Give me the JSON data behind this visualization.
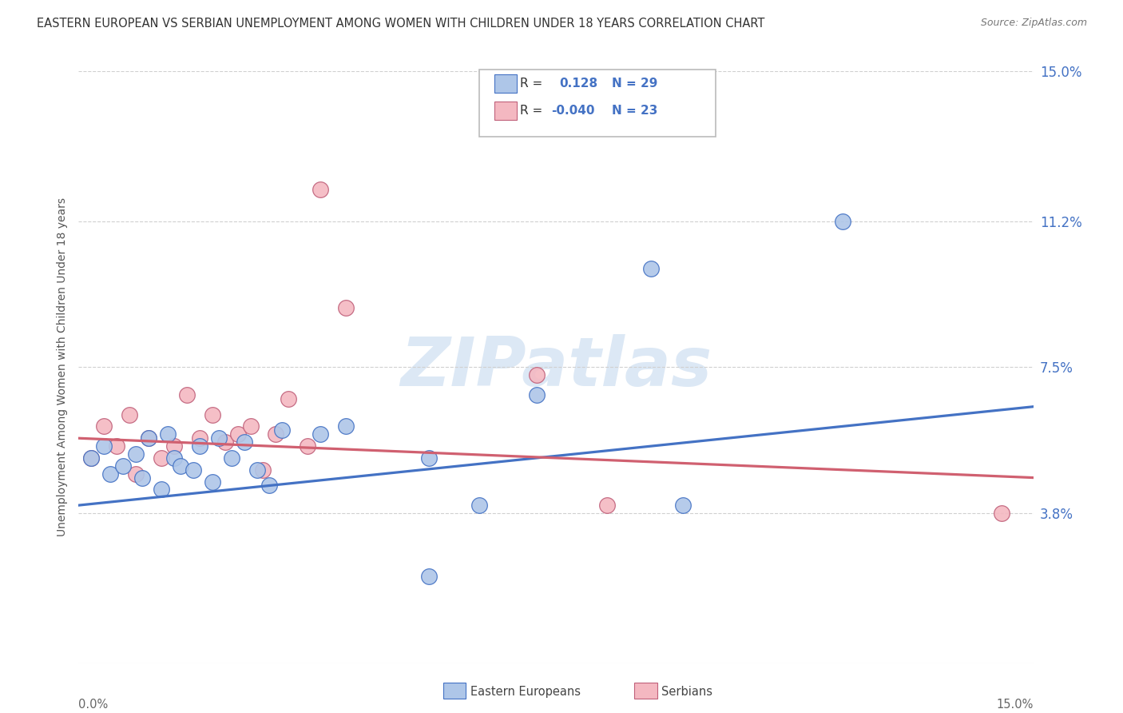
{
  "title": "EASTERN EUROPEAN VS SERBIAN UNEMPLOYMENT AMONG WOMEN WITH CHILDREN UNDER 18 YEARS CORRELATION CHART",
  "source": "Source: ZipAtlas.com",
  "ylabel": "Unemployment Among Women with Children Under 18 years",
  "xlim": [
    0.0,
    0.15
  ],
  "ylim": [
    0.0,
    0.15
  ],
  "ytick_vals": [
    0.038,
    0.075,
    0.112,
    0.15
  ],
  "ytick_labels": [
    "3.8%",
    "7.5%",
    "11.2%",
    "15.0%"
  ],
  "ee_x": [
    0.002,
    0.004,
    0.005,
    0.007,
    0.009,
    0.01,
    0.011,
    0.013,
    0.014,
    0.015,
    0.016,
    0.018,
    0.019,
    0.021,
    0.022,
    0.024,
    0.026,
    0.028,
    0.03,
    0.032,
    0.038,
    0.042,
    0.055,
    0.063,
    0.072,
    0.09,
    0.095,
    0.12,
    0.055
  ],
  "ee_y": [
    0.052,
    0.055,
    0.048,
    0.05,
    0.053,
    0.047,
    0.057,
    0.044,
    0.058,
    0.052,
    0.05,
    0.049,
    0.055,
    0.046,
    0.057,
    0.052,
    0.056,
    0.049,
    0.045,
    0.059,
    0.058,
    0.06,
    0.052,
    0.04,
    0.068,
    0.1,
    0.04,
    0.112,
    0.022
  ],
  "se_x": [
    0.002,
    0.004,
    0.006,
    0.008,
    0.009,
    0.011,
    0.013,
    0.015,
    0.017,
    0.019,
    0.021,
    0.023,
    0.025,
    0.027,
    0.029,
    0.031,
    0.033,
    0.036,
    0.038,
    0.042,
    0.072,
    0.083,
    0.145
  ],
  "se_y": [
    0.052,
    0.06,
    0.055,
    0.063,
    0.048,
    0.057,
    0.052,
    0.055,
    0.068,
    0.057,
    0.063,
    0.056,
    0.058,
    0.06,
    0.049,
    0.058,
    0.067,
    0.055,
    0.12,
    0.09,
    0.073,
    0.04,
    0.038
  ],
  "ee_color": "#aec6e8",
  "ee_edge_color": "#4472c4",
  "se_color": "#f4b8c1",
  "se_edge_color": "#c0607a",
  "ee_line_color": "#4472c4",
  "se_line_color": "#d06070",
  "bg_color": "#ffffff",
  "grid_color": "#d0d0d0",
  "watermark_text": "ZIPatlas",
  "watermark_color": "#dce8f5",
  "r_ee": "0.128",
  "n_ee": "29",
  "r_se": "-0.040",
  "n_se": "23",
  "title_fontsize": 10.5,
  "source_fontsize": 9,
  "tick_label_color": "#4472c4"
}
